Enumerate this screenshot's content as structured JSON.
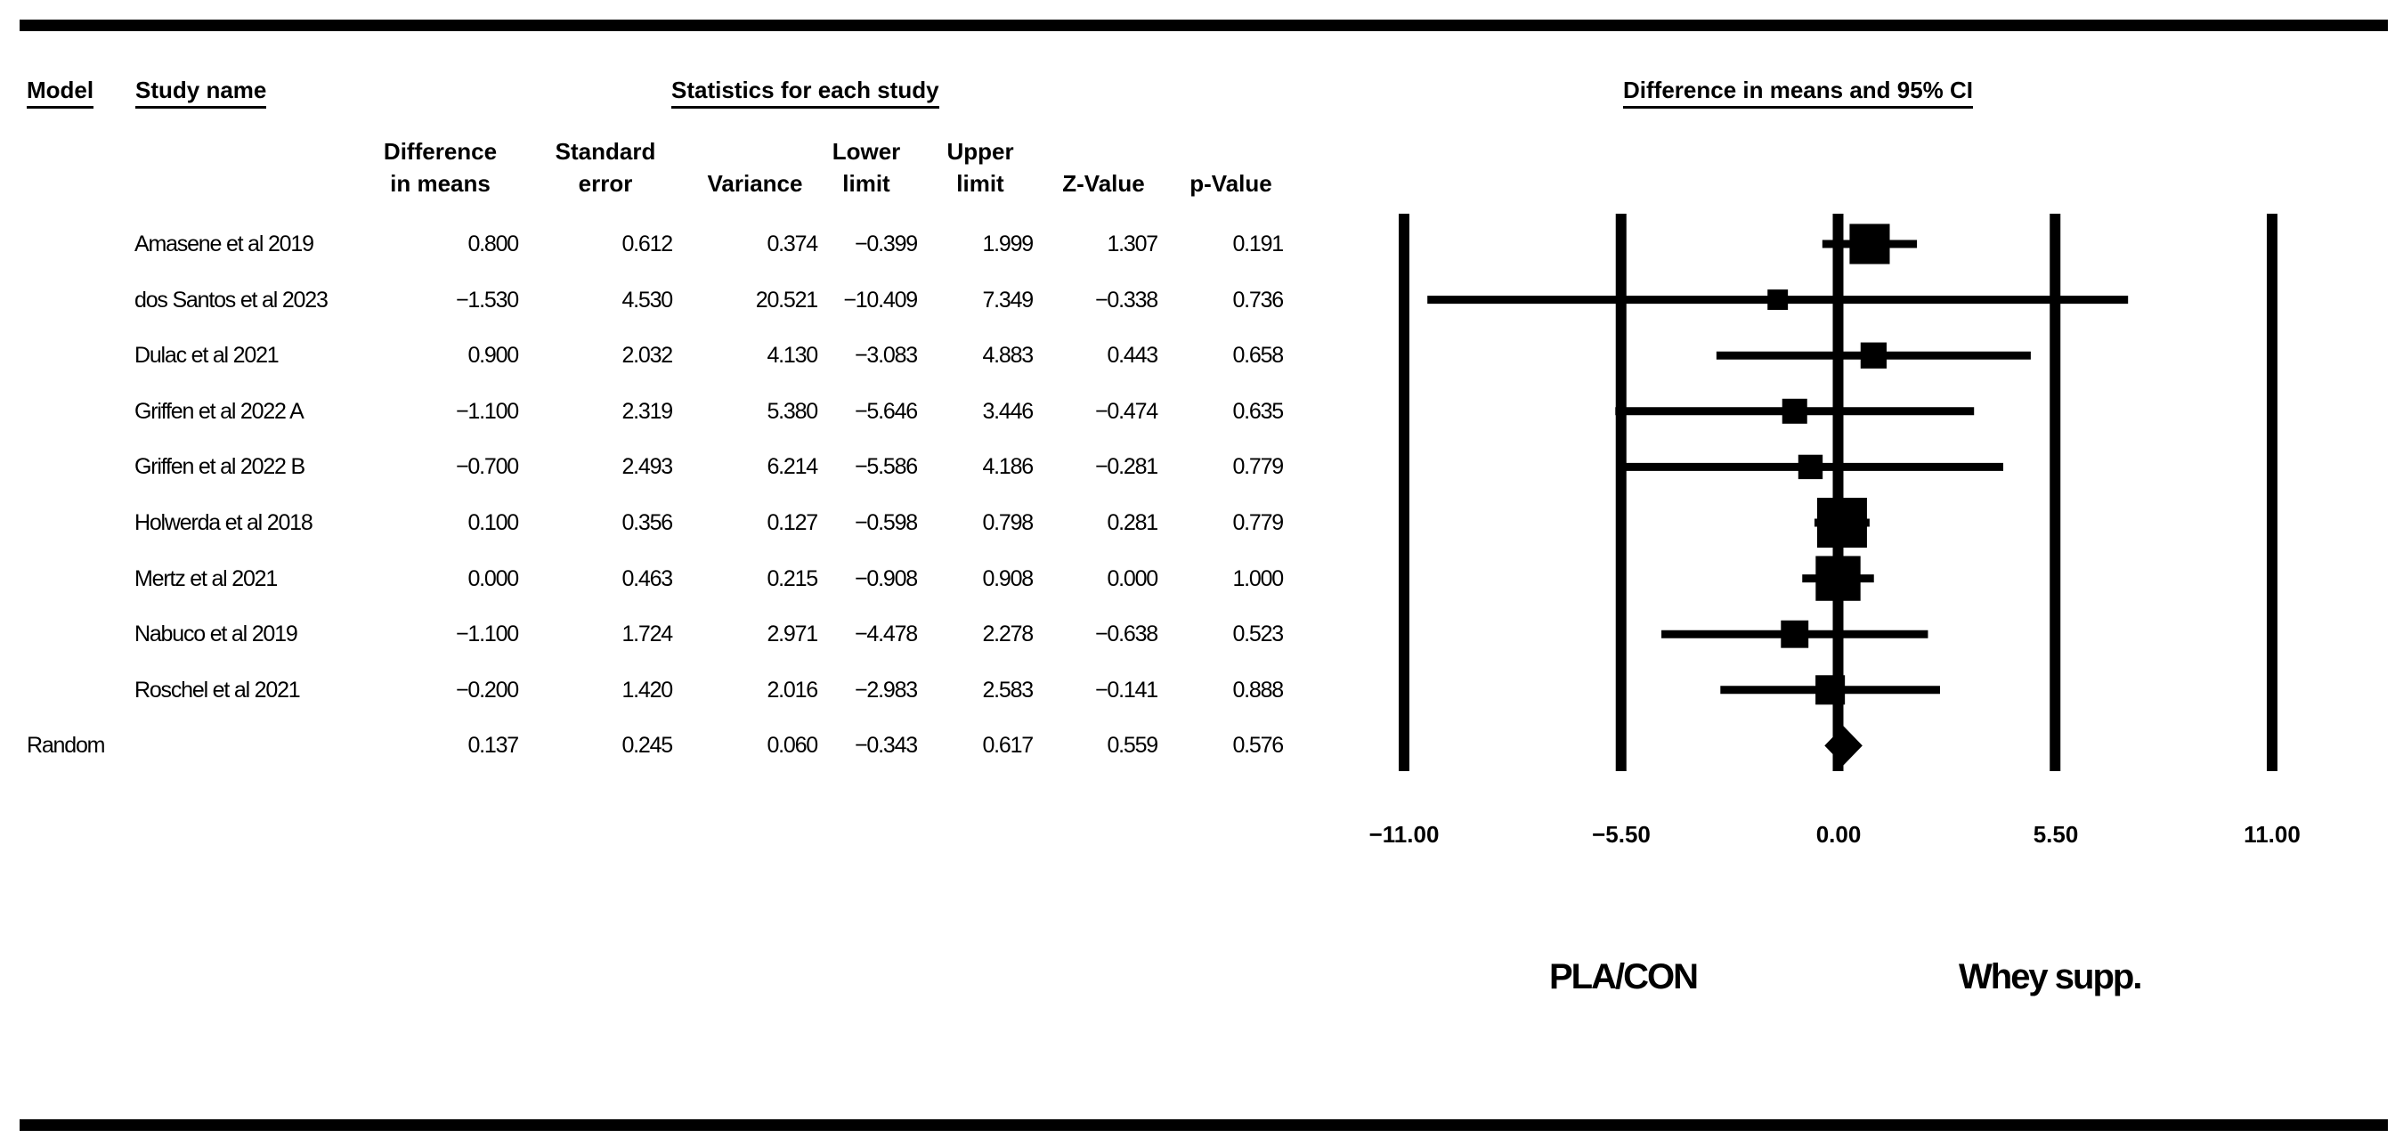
{
  "headers": {
    "model": "Model",
    "study_name": "Study name",
    "statistics": "Statistics for each study",
    "plot_title": "Difference in means and 95% CI"
  },
  "columns": [
    [
      "Difference",
      "in means"
    ],
    [
      "Standard",
      "error"
    ],
    [
      "",
      "Variance"
    ],
    [
      "Lower",
      "limit"
    ],
    [
      "Upper",
      "limit"
    ],
    [
      "",
      "Z-Value"
    ],
    [
      "",
      "p-Value"
    ]
  ],
  "rows": [
    {
      "model": "",
      "study": "Amasene et al 2019",
      "values": [
        "0.800",
        "0.612",
        "0.374",
        "−0.399",
        "1.999",
        "1.307",
        "0.191"
      ]
    },
    {
      "model": "",
      "study": "dos Santos et al 2023",
      "values": [
        "−1.530",
        "4.530",
        "20.521",
        "−10.409",
        "7.349",
        "−0.338",
        "0.736"
      ]
    },
    {
      "model": "",
      "study": "Dulac et al 2021",
      "values": [
        "0.900",
        "2.032",
        "4.130",
        "−3.083",
        "4.883",
        "0.443",
        "0.658"
      ]
    },
    {
      "model": "",
      "study": "Griffen et al 2022 A",
      "values": [
        "−1.100",
        "2.319",
        "5.380",
        "−5.646",
        "3.446",
        "−0.474",
        "0.635"
      ]
    },
    {
      "model": "",
      "study": "Griffen et al 2022 B",
      "values": [
        "−0.700",
        "2.493",
        "6.214",
        "−5.586",
        "4.186",
        "−0.281",
        "0.779"
      ]
    },
    {
      "model": "",
      "study": "Holwerda et al 2018",
      "values": [
        "0.100",
        "0.356",
        "0.127",
        "−0.598",
        "0.798",
        "0.281",
        "0.779"
      ]
    },
    {
      "model": "",
      "study": "Mertz et al 2021",
      "values": [
        "0.000",
        "0.463",
        "0.215",
        "−0.908",
        "0.908",
        "0.000",
        "1.000"
      ]
    },
    {
      "model": "",
      "study": "Nabuco et al 2019",
      "values": [
        "−1.100",
        "1.724",
        "2.971",
        "−4.478",
        "2.278",
        "−0.638",
        "0.523"
      ]
    },
    {
      "model": "",
      "study": "Roschel et al 2021",
      "values": [
        "−0.200",
        "1.420",
        "2.016",
        "−2.983",
        "2.583",
        "−0.141",
        "0.888"
      ]
    },
    {
      "model": "Random",
      "study": "",
      "values": [
        "0.137",
        "0.245",
        "0.060",
        "−0.343",
        "0.617",
        "0.559",
        "0.576"
      ]
    }
  ],
  "chart_data": {
    "type": "forest",
    "title": "Difference in means and 95% CI",
    "xlim": [
      -11,
      11
    ],
    "ticks": [
      -11,
      -5.5,
      0,
      5.5,
      11
    ],
    "tick_labels": [
      "−11.00",
      "−5.50",
      "0.00",
      "5.50",
      "11.00"
    ],
    "left_label": "PLA/CON",
    "right_label": "Whey supp.",
    "studies": [
      {
        "name": "Amasene et al 2019",
        "mean": 0.8,
        "lower": -0.399,
        "upper": 1.999,
        "se": 0.612
      },
      {
        "name": "dos Santos et al 2023",
        "mean": -1.53,
        "lower": -10.409,
        "upper": 7.349,
        "se": 4.53
      },
      {
        "name": "Dulac et al 2021",
        "mean": 0.9,
        "lower": -3.083,
        "upper": 4.883,
        "se": 2.032
      },
      {
        "name": "Griffen et al 2022 A",
        "mean": -1.1,
        "lower": -5.646,
        "upper": 3.446,
        "se": 2.319
      },
      {
        "name": "Griffen et al 2022 B",
        "mean": -0.7,
        "lower": -5.586,
        "upper": 4.186,
        "se": 2.493
      },
      {
        "name": "Holwerda et al 2018",
        "mean": 0.1,
        "lower": -0.598,
        "upper": 0.798,
        "se": 0.356
      },
      {
        "name": "Mertz et al 2021",
        "mean": 0.0,
        "lower": -0.908,
        "upper": 0.908,
        "se": 0.463
      },
      {
        "name": "Nabuco et al 2019",
        "mean": -1.1,
        "lower": -4.478,
        "upper": 2.278,
        "se": 1.724
      },
      {
        "name": "Roschel et al 2021",
        "mean": -0.2,
        "lower": -2.983,
        "upper": 2.583,
        "se": 1.42
      }
    ],
    "summary": {
      "name": "Random",
      "mean": 0.137,
      "lower": -0.343,
      "upper": 0.617,
      "se": 0.245
    }
  }
}
